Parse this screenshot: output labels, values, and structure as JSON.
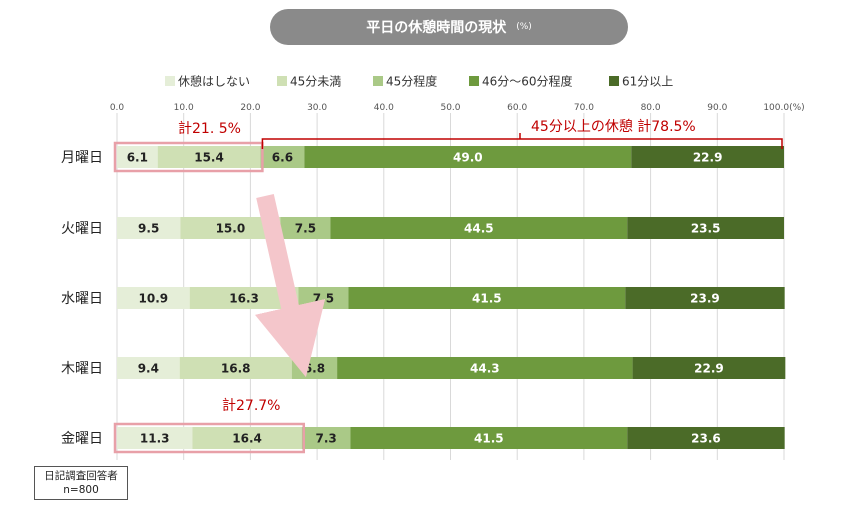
{
  "title": "平日の休憩時間の現状",
  "title_unit": "(%)",
  "note": {
    "line1": "日記調査回答者",
    "line2": "n=800"
  },
  "annotations": {
    "top_left_total": "計21. 5%",
    "top_right_total": "45分以上の休憩 計78.5%",
    "bottom_total": "計27.7%"
  },
  "colors": {
    "series": [
      "#e5eed8",
      "#cfe0b4",
      "#aac987",
      "#6e9a3e",
      "#4b6b28"
    ],
    "highlight": "#e8a0a8",
    "annotation_text": "#c00000",
    "arrow": "#f4c6cb"
  },
  "chart_data": {
    "type": "bar",
    "orientation": "horizontal",
    "stacked": true,
    "categories": [
      "月曜日",
      "火曜日",
      "水曜日",
      "木曜日",
      "金曜日"
    ],
    "series": [
      {
        "name": "休憩はしない",
        "values": [
          6.1,
          9.5,
          10.9,
          9.4,
          11.3
        ]
      },
      {
        "name": "45分未満",
        "values": [
          15.4,
          15.0,
          16.3,
          16.8,
          16.4
        ]
      },
      {
        "name": "45分程度",
        "values": [
          6.6,
          7.5,
          7.5,
          6.8,
          7.3
        ]
      },
      {
        "name": "46分～60分程度",
        "values": [
          49.0,
          44.5,
          41.5,
          44.3,
          41.5
        ]
      },
      {
        "name": "61分以上",
        "values": [
          22.9,
          23.5,
          23.9,
          22.9,
          23.6
        ]
      }
    ],
    "x_ticks": [
      "0.0",
      "10.0",
      "20.0",
      "30.0",
      "40.0",
      "50.0",
      "60.0",
      "70.0",
      "80.0",
      "90.0",
      "100.0(%)"
    ],
    "xlim": [
      0,
      100
    ],
    "grid": true,
    "legend_position": "top"
  }
}
